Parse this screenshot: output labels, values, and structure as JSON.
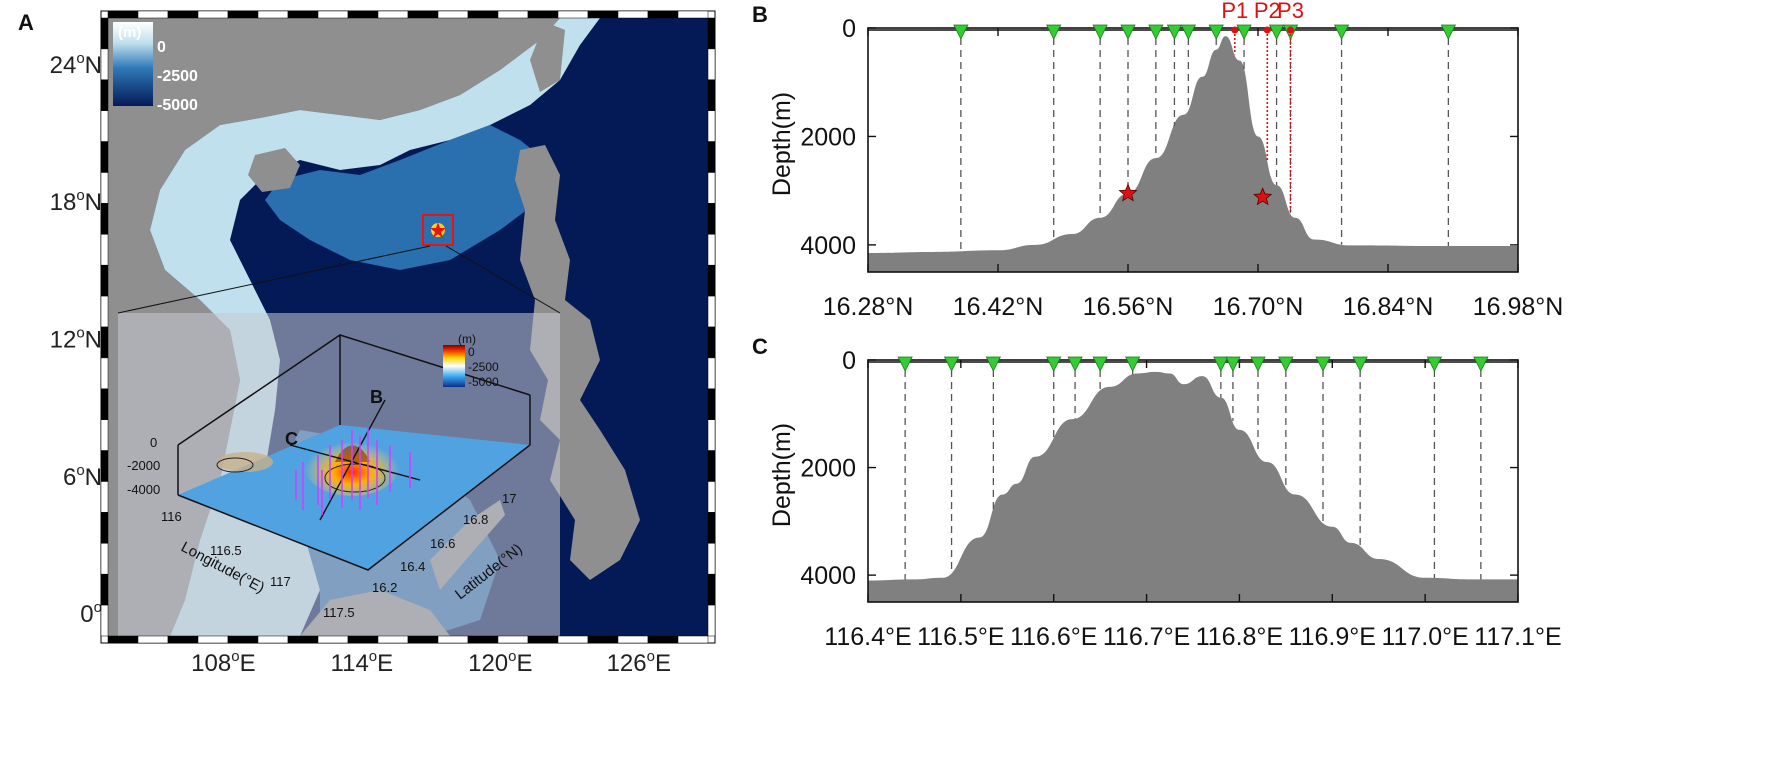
{
  "panel_a": {
    "label": "A",
    "lat_ticks": [
      {
        "value": 24,
        "deg": "24",
        "hemi": "N"
      },
      {
        "value": 18,
        "deg": "18",
        "hemi": "N"
      },
      {
        "value": 12,
        "deg": "12",
        "hemi": "N"
      },
      {
        "value": 6,
        "deg": "6",
        "hemi": "N"
      },
      {
        "value": 0,
        "deg": "0",
        "hemi": ""
      }
    ],
    "lon_ticks": [
      {
        "value": 108,
        "deg": "108",
        "hemi": "E"
      },
      {
        "value": 114,
        "deg": "114",
        "hemi": "E"
      },
      {
        "value": 120,
        "deg": "120",
        "hemi": "E"
      },
      {
        "value": 126,
        "deg": "126",
        "hemi": "E"
      }
    ],
    "degree_symbol": "o",
    "lon_range": [
      103,
      129
    ],
    "lat_range": [
      -1,
      26
    ],
    "colorbar": {
      "unit": "(m)",
      "labels": [
        "0",
        "-2500",
        "-5000"
      ]
    },
    "study_area": {
      "lon": 116.6,
      "lat": 16.7
    },
    "colors": {
      "land": "#8f8f8f",
      "shelf": "#bfe0ec",
      "mid": "#2f79b8",
      "deep": "#041a57"
    },
    "inset": {
      "colorbar": {
        "unit": "(m)",
        "labels": [
          "0",
          "-2500",
          "-5000"
        ]
      },
      "z_ticks": [
        "0",
        "-2000",
        "-4000"
      ],
      "lon_ticks": [
        "116",
        "116.5",
        "117",
        "117.5"
      ],
      "lat_ticks": [
        "16.2",
        "16.4",
        "16.6",
        "16.8",
        "17"
      ],
      "xlabel": "Longitude(°E)",
      "ylabel": "Latitude(°N)",
      "profile_labels": [
        "C",
        "B"
      ]
    }
  },
  "chart_data": [
    {
      "panel": "B",
      "type": "area",
      "ylabel": "Depth(m)",
      "xlim": [
        16.28,
        16.98
      ],
      "ylim": [
        4500,
        0
      ],
      "yticks": [
        0,
        2000,
        4000
      ],
      "xticks": [
        {
          "value": 16.28,
          "label": "16.28°N"
        },
        {
          "value": 16.42,
          "label": "16.42°N"
        },
        {
          "value": 16.56,
          "label": "16.56°N"
        },
        {
          "value": 16.7,
          "label": "16.70°N"
        },
        {
          "value": 16.84,
          "label": "16.84°N"
        },
        {
          "value": 16.98,
          "label": "16.98°N"
        }
      ],
      "bathymetry": {
        "x": [
          16.28,
          16.35,
          16.42,
          16.46,
          16.5,
          16.53,
          16.56,
          16.59,
          16.62,
          16.64,
          16.655,
          16.665,
          16.68,
          16.7,
          16.72,
          16.74,
          16.76,
          16.8,
          16.9,
          16.98
        ],
        "depth": [
          4150,
          4130,
          4100,
          4000,
          3800,
          3500,
          3050,
          2400,
          1600,
          900,
          400,
          150,
          600,
          2000,
          2900,
          3500,
          3900,
          4010,
          4020,
          4020
        ]
      },
      "stations": [
        16.38,
        16.48,
        16.53,
        16.56,
        16.59,
        16.61,
        16.625,
        16.655,
        16.685,
        16.72,
        16.735,
        16.79,
        16.905
      ],
      "samples": [
        {
          "label": "P1",
          "x": 16.675
        },
        {
          "label": "P2",
          "x": 16.71
        },
        {
          "label": "P3",
          "x": 16.735
        }
      ],
      "stars": [
        {
          "x": 16.56,
          "depth": 3050
        },
        {
          "x": 16.705,
          "depth": 3120
        }
      ],
      "colors": {
        "seafloor": "#808080",
        "station": "#33cc33",
        "sample": "#dd1111"
      }
    },
    {
      "panel": "C",
      "type": "area",
      "ylabel": "Depth(m)",
      "xlim": [
        116.4,
        117.1
      ],
      "ylim": [
        4500,
        0
      ],
      "yticks": [
        0,
        2000,
        4000
      ],
      "xticks": [
        {
          "value": 116.4,
          "label": "116.4°E"
        },
        {
          "value": 116.5,
          "label": "116.5°E"
        },
        {
          "value": 116.6,
          "label": "116.6°E"
        },
        {
          "value": 116.7,
          "label": "116.7°E"
        },
        {
          "value": 116.8,
          "label": "116.8°E"
        },
        {
          "value": 116.9,
          "label": "116.9°E"
        },
        {
          "value": 117.0,
          "label": "117.0°E"
        },
        {
          "value": 117.1,
          "label": "117.1°E"
        }
      ],
      "bathymetry": {
        "x": [
          116.4,
          116.45,
          116.48,
          116.52,
          116.545,
          116.56,
          116.58,
          116.62,
          116.66,
          116.69,
          116.71,
          116.725,
          116.74,
          116.76,
          116.78,
          116.8,
          116.83,
          116.86,
          116.9,
          116.92,
          116.95,
          117.0,
          117.05,
          117.1
        ],
        "depth": [
          4100,
          4080,
          4050,
          3300,
          2500,
          2300,
          1800,
          1100,
          500,
          250,
          220,
          250,
          450,
          300,
          700,
          1300,
          1900,
          2500,
          3100,
          3400,
          3700,
          4050,
          4080,
          4080
        ]
      },
      "stations": [
        116.44,
        116.49,
        116.535,
        116.6,
        116.623,
        116.65,
        116.685,
        116.78,
        116.793,
        116.82,
        116.85,
        116.89,
        116.93,
        117.01,
        117.06
      ],
      "colors": {
        "seafloor": "#808080",
        "station": "#33cc33"
      }
    }
  ]
}
